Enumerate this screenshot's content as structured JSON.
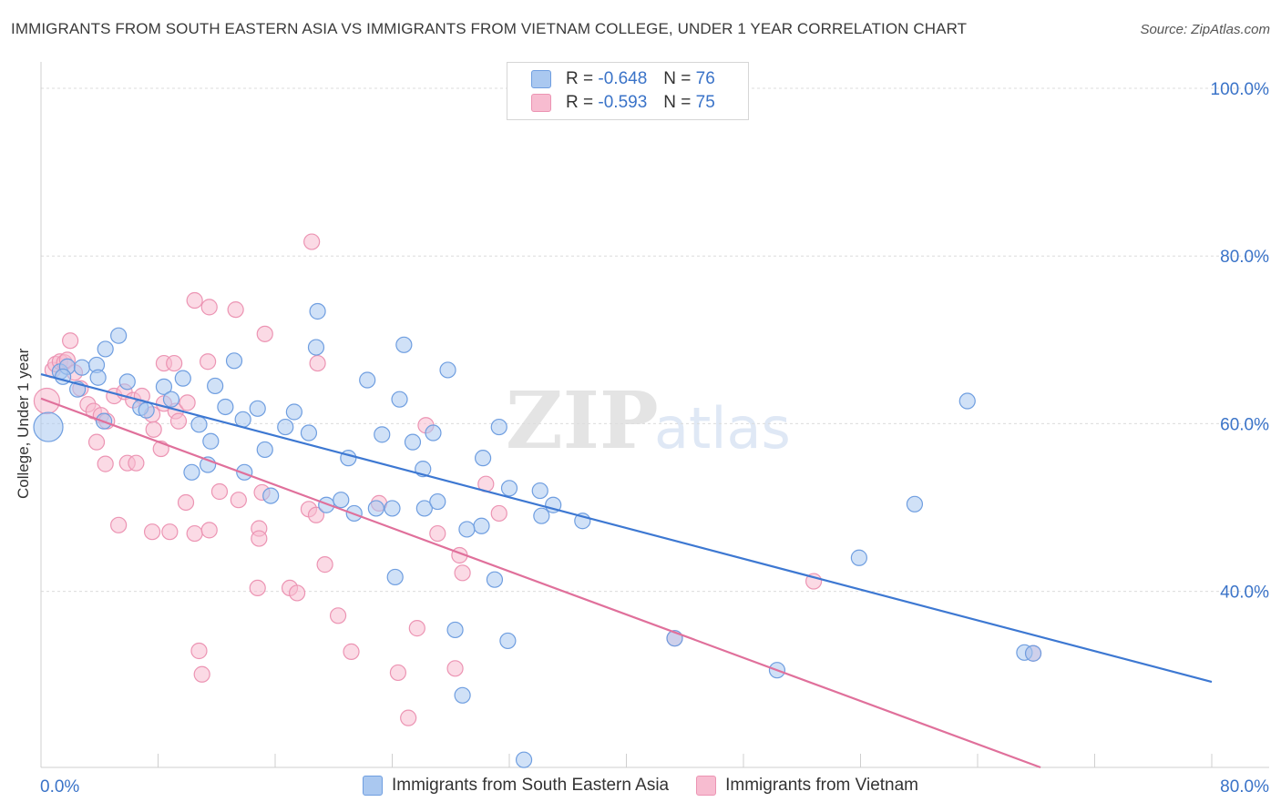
{
  "title": "IMMIGRANTS FROM SOUTH EASTERN ASIA VS IMMIGRANTS FROM VIETNAM COLLEGE, UNDER 1 YEAR CORRELATION CHART",
  "source": "Source: ZipAtlas.com",
  "watermark": {
    "zip": "ZIP",
    "atlas": "atlas"
  },
  "legend": {
    "rows": [
      {
        "r_label": "R =",
        "r_value": "-0.648",
        "n_label": "N =",
        "n_value": "76"
      },
      {
        "r_label": "R =",
        "r_value": "-0.593",
        "n_label": "N =",
        "n_value": "75"
      }
    ]
  },
  "colors": {
    "series1_fill": "#aac8f0",
    "series1_stroke": "#6f9ee0",
    "series1_line": "#3d78d2",
    "series2_fill": "#f7bcd0",
    "series2_stroke": "#ec94b3",
    "series2_line": "#e0709b",
    "tick_label": "#3a73c8",
    "grid": "#dcdcdc"
  },
  "chart_data": {
    "type": "scatter",
    "title": "IMMIGRANTS FROM SOUTH EASTERN ASIA VS IMMIGRANTS FROM VIETNAM COLLEGE, UNDER 1 YEAR CORRELATION CHART",
    "xlabel": "",
    "ylabel": "College, Under 1 year",
    "xlim": [
      0,
      80
    ],
    "ylim": [
      19,
      100
    ],
    "x_tick_labels": [
      "0.0%",
      "80.0%"
    ],
    "y_ticks": [
      40,
      60,
      80,
      100
    ],
    "y_tick_labels": [
      "40.0%",
      "60.0%",
      "80.0%",
      "100.0%"
    ],
    "grid": true,
    "legend_position": "top-center",
    "series": [
      {
        "name": "Immigrants from South Eastern Asia",
        "r": -0.648,
        "n": 76,
        "trend": [
          [
            0,
            65.9
          ],
          [
            80,
            29.2
          ]
        ],
        "points": [
          [
            1.3,
            66.2
          ],
          [
            1.8,
            66.8
          ],
          [
            1.5,
            65.6
          ],
          [
            2.8,
            66.7
          ],
          [
            3.8,
            67.0
          ],
          [
            4.4,
            68.9
          ],
          [
            5.3,
            70.5
          ],
          [
            2.5,
            64.1
          ],
          [
            3.9,
            65.5
          ],
          [
            5.9,
            65.0
          ],
          [
            6.8,
            61.9
          ],
          [
            7.2,
            61.6
          ],
          [
            8.4,
            64.4
          ],
          [
            8.9,
            62.9
          ],
          [
            9.7,
            65.4
          ],
          [
            10.8,
            59.9
          ],
          [
            11.9,
            64.5
          ],
          [
            12.6,
            62.0
          ],
          [
            13.8,
            60.5
          ],
          [
            14.8,
            61.8
          ],
          [
            16.7,
            59.6
          ],
          [
            17.3,
            61.4
          ],
          [
            18.3,
            58.9
          ],
          [
            15.3,
            56.9
          ],
          [
            11.6,
            57.9
          ],
          [
            10.3,
            54.2
          ],
          [
            11.4,
            55.1
          ],
          [
            13.9,
            54.2
          ],
          [
            15.7,
            51.4
          ],
          [
            19.5,
            50.3
          ],
          [
            20.5,
            50.9
          ],
          [
            21.4,
            49.3
          ],
          [
            22.9,
            49.9
          ],
          [
            24.0,
            49.9
          ],
          [
            26.2,
            49.9
          ],
          [
            27.1,
            50.7
          ],
          [
            30.1,
            47.8
          ],
          [
            29.1,
            47.4
          ],
          [
            32.0,
            52.3
          ],
          [
            34.1,
            52.0
          ],
          [
            35.0,
            50.3
          ],
          [
            34.2,
            49.0
          ],
          [
            37.0,
            48.4
          ],
          [
            21.0,
            55.9
          ],
          [
            26.1,
            54.6
          ],
          [
            23.3,
            58.7
          ],
          [
            25.4,
            57.8
          ],
          [
            26.8,
            58.9
          ],
          [
            30.2,
            55.9
          ],
          [
            31.3,
            59.6
          ],
          [
            24.5,
            62.9
          ],
          [
            22.3,
            65.2
          ],
          [
            18.9,
            73.4
          ],
          [
            18.8,
            69.1
          ],
          [
            24.8,
            69.4
          ],
          [
            13.2,
            67.5
          ],
          [
            27.8,
            66.4
          ],
          [
            4.3,
            60.3
          ],
          [
            0.5,
            59.6
          ],
          [
            24.2,
            41.7
          ],
          [
            31.0,
            41.4
          ],
          [
            28.3,
            35.4
          ],
          [
            31.9,
            34.1
          ],
          [
            28.8,
            27.6
          ],
          [
            33.0,
            19.9
          ],
          [
            43.3,
            34.4
          ],
          [
            50.3,
            30.6
          ],
          [
            55.9,
            44.0
          ],
          [
            59.7,
            50.4
          ],
          [
            63.3,
            62.7
          ],
          [
            67.2,
            32.7
          ],
          [
            67.8,
            32.6
          ]
        ]
      },
      {
        "name": "Immigrants from Vietnam",
        "r": -0.593,
        "n": 75,
        "trend": [
          [
            0,
            63.0
          ],
          [
            68.3,
            19.0
          ]
        ],
        "points": [
          [
            0.4,
            62.7
          ],
          [
            0.8,
            66.4
          ],
          [
            1.0,
            67.1
          ],
          [
            1.3,
            67.4
          ],
          [
            1.6,
            67.3
          ],
          [
            1.8,
            67.6
          ],
          [
            2.0,
            69.9
          ],
          [
            2.3,
            66.1
          ],
          [
            2.7,
            64.2
          ],
          [
            3.2,
            62.3
          ],
          [
            3.6,
            61.5
          ],
          [
            4.1,
            61.0
          ],
          [
            4.5,
            60.3
          ],
          [
            5.0,
            63.3
          ],
          [
            5.7,
            63.8
          ],
          [
            6.3,
            62.8
          ],
          [
            6.9,
            63.3
          ],
          [
            7.6,
            61.1
          ],
          [
            8.4,
            62.4
          ],
          [
            9.2,
            61.5
          ],
          [
            10.0,
            62.5
          ],
          [
            3.8,
            57.8
          ],
          [
            4.4,
            55.2
          ],
          [
            5.9,
            55.3
          ],
          [
            6.5,
            55.3
          ],
          [
            7.7,
            59.3
          ],
          [
            8.2,
            57.0
          ],
          [
            9.4,
            60.3
          ],
          [
            5.3,
            47.9
          ],
          [
            7.6,
            47.1
          ],
          [
            8.8,
            47.1
          ],
          [
            9.9,
            50.6
          ],
          [
            10.5,
            46.9
          ],
          [
            11.5,
            47.3
          ],
          [
            12.2,
            51.9
          ],
          [
            13.5,
            50.9
          ],
          [
            14.9,
            47.5
          ],
          [
            14.9,
            46.3
          ],
          [
            15.1,
            51.8
          ],
          [
            17.0,
            40.4
          ],
          [
            17.5,
            39.8
          ],
          [
            18.3,
            49.8
          ],
          [
            18.8,
            49.1
          ],
          [
            19.4,
            43.2
          ],
          [
            20.3,
            37.1
          ],
          [
            21.2,
            32.8
          ],
          [
            23.1,
            50.5
          ],
          [
            24.4,
            30.3
          ],
          [
            25.1,
            24.9
          ],
          [
            25.7,
            35.6
          ],
          [
            27.1,
            46.9
          ],
          [
            28.6,
            44.3
          ],
          [
            28.8,
            42.2
          ],
          [
            28.3,
            30.8
          ],
          [
            30.4,
            52.8
          ],
          [
            31.3,
            49.3
          ],
          [
            26.3,
            59.8
          ],
          [
            10.5,
            74.7
          ],
          [
            11.5,
            73.9
          ],
          [
            13.3,
            73.6
          ],
          [
            15.3,
            70.7
          ],
          [
            11.4,
            67.4
          ],
          [
            8.4,
            67.2
          ],
          [
            9.1,
            67.2
          ],
          [
            18.9,
            67.2
          ],
          [
            18.5,
            81.7
          ],
          [
            10.8,
            32.9
          ],
          [
            11.0,
            30.1
          ],
          [
            14.8,
            40.4
          ],
          [
            52.8,
            41.2
          ],
          [
            43.3,
            34.4
          ],
          [
            67.8,
            32.6
          ]
        ]
      }
    ]
  },
  "axes": {
    "x_min_label": "0.0%",
    "x_max_label": "80.0%",
    "ylabel": "College, Under 1 year"
  },
  "bottom_legend": {
    "series1_label": "Immigrants from South Eastern Asia",
    "series2_label": "Immigrants from Vietnam"
  }
}
